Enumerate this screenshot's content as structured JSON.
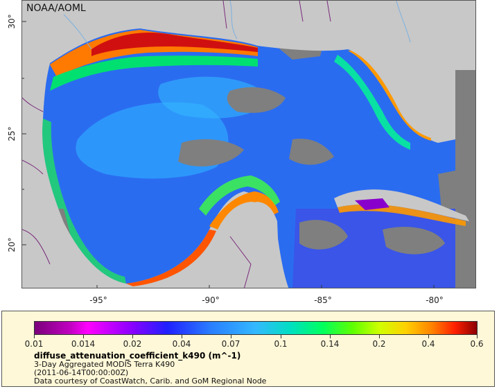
{
  "map": {
    "watermark": "NOAA/AOML",
    "lat_labels": [
      "30°",
      "25°",
      "20°"
    ],
    "lon_labels": [
      "-95°",
      "-90°",
      "-85°",
      "-80°"
    ],
    "colors": {
      "land": "#c8c8c8",
      "cloud": "#7f7f7f",
      "coast_high": "#d01010",
      "shelf": "#ff9900",
      "mid": "#00ff80",
      "ocean": "#1f6bff",
      "deep": "#2f2fff",
      "purple": "#8800cc",
      "border": "#7a2a7a",
      "river": "#7ab0e0"
    }
  },
  "legend": {
    "ticks": [
      "0.01",
      "0.014",
      "0.02",
      "0.04",
      "0.07",
      "0.1",
      "0.14",
      "0.2",
      "0.4",
      "0.6"
    ],
    "title": "diffuse_attenuation_coefficient_k490 (m^-1)",
    "lines": [
      "3-Day Aggregated MODIS Terra K490",
      "(2011-06-14T00:00:00Z)",
      "Data courtesy of CoastWatch, Carib. and GoM Regional Node"
    ]
  }
}
